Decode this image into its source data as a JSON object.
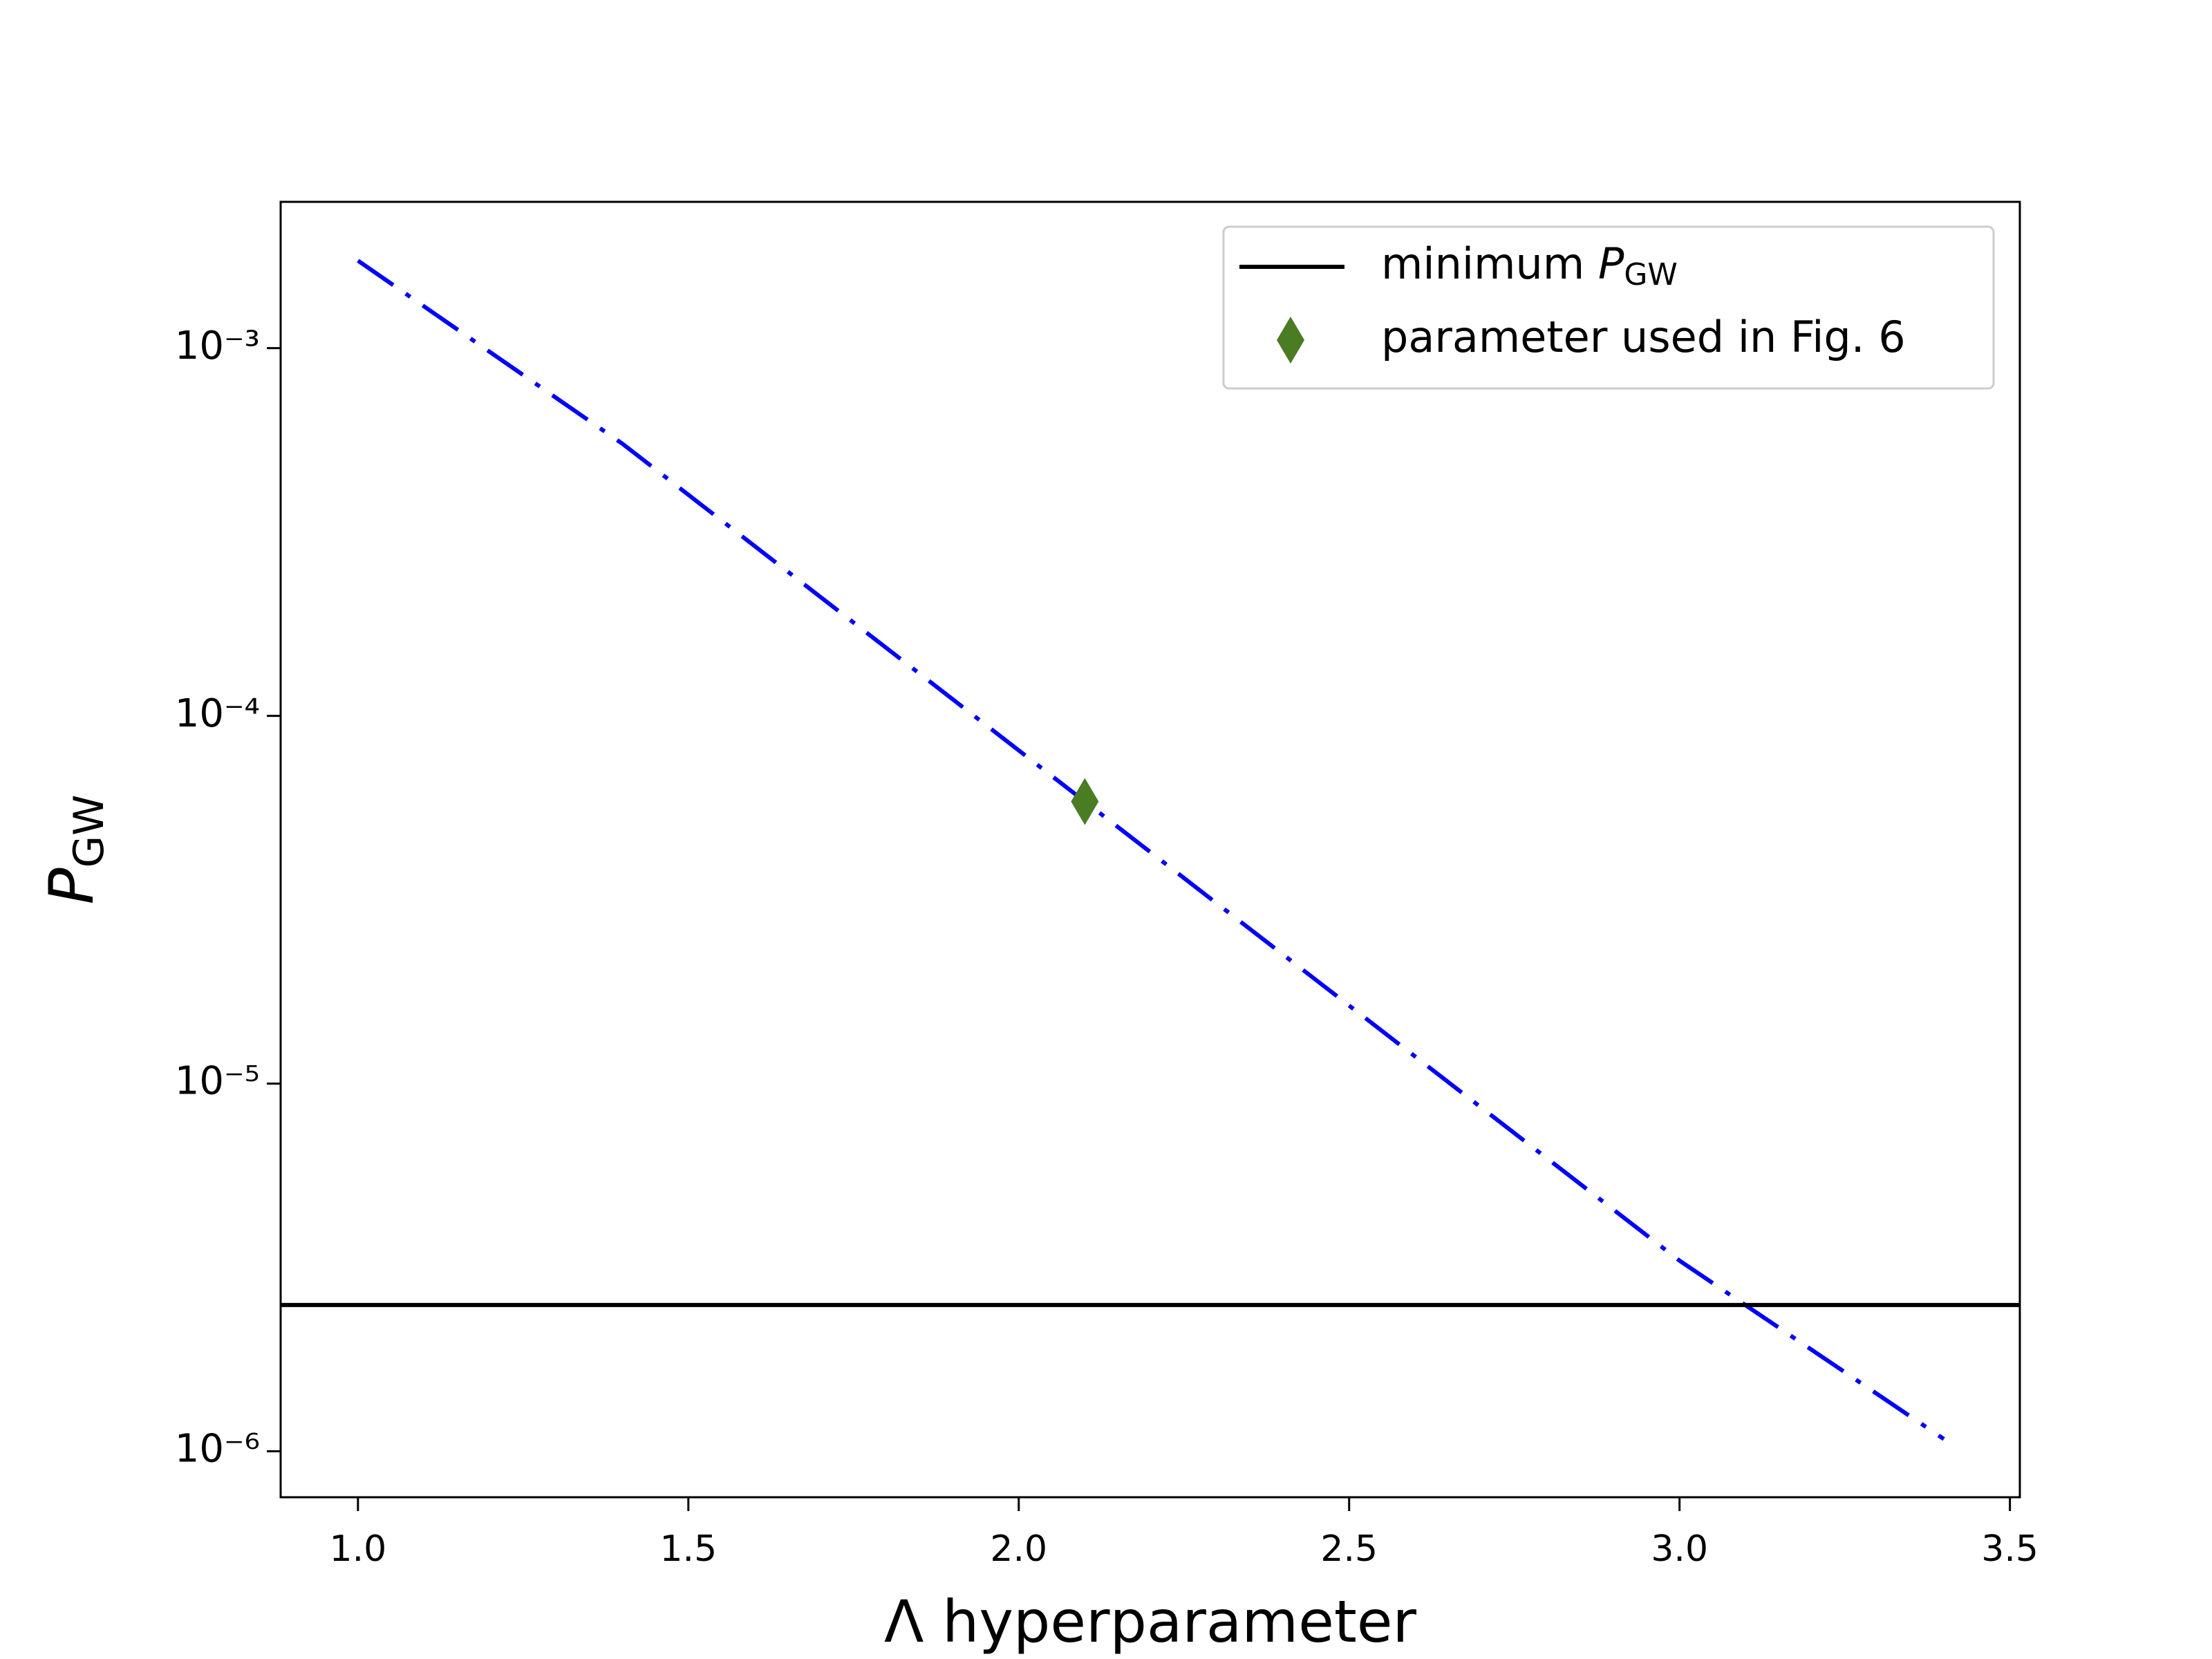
{
  "chart_data": {
    "type": "line",
    "xlabel": "Λ hyperparameter",
    "ylabel": {
      "main": "P",
      "sub": "GW"
    },
    "yscale": "log",
    "xlim": [
      0.883,
      3.515
    ],
    "ylim": [
      7.5e-07,
      0.0025
    ],
    "xticks": [
      {
        "value": 1,
        "label": "1.0"
      },
      {
        "value": 1.5,
        "label": "1.5"
      },
      {
        "value": 2,
        "label": "2.0"
      },
      {
        "value": 2.5,
        "label": "2.5"
      },
      {
        "value": 3,
        "label": "3.0"
      },
      {
        "value": 3.5,
        "label": "3.5"
      }
    ],
    "yticks": [
      {
        "value": 1e-06,
        "label": "10⁻⁶"
      },
      {
        "value": 1e-05,
        "label": "10⁻⁵"
      },
      {
        "value": 0.0001,
        "label": "10⁻⁴"
      },
      {
        "value": 0.001,
        "label": "10⁻³"
      }
    ],
    "legend": "upper right",
    "series": [
      {
        "kind": "line",
        "color": "#0000ff",
        "linestyle": "dashdot",
        "x": [
          1.0,
          1.4,
          2.1,
          3.0,
          3.4
        ],
        "values": [
          0.00173,
          0.00055,
          5.85e-05,
          3.3e-06,
          1.08e-06
        ]
      },
      {
        "kind": "hline",
        "name": "minimum P",
        "name_sub": "GW",
        "color": "#000000",
        "values": [
          2.5e-06
        ]
      },
      {
        "kind": "scatter",
        "name": "parameter used in Fig. 6",
        "marker": "diamond",
        "color": "#4a7c23",
        "x": [
          2.1
        ],
        "values": [
          5.85e-05
        ]
      }
    ]
  }
}
